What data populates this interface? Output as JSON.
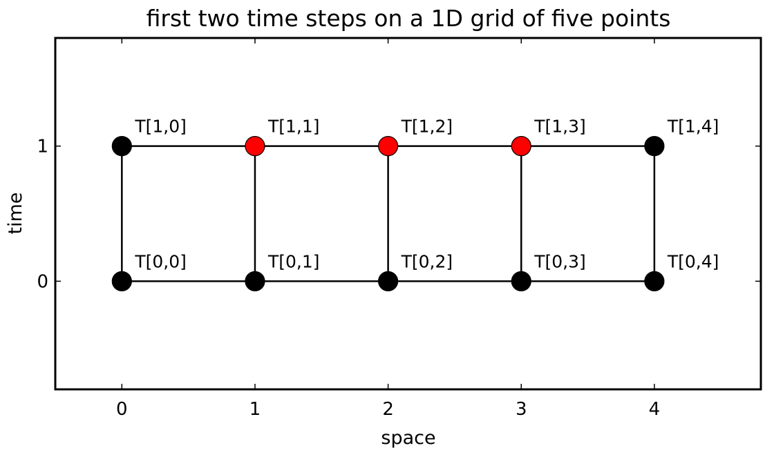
{
  "chart_data": {
    "type": "scatter",
    "title": "first two time steps on a 1D grid of five points",
    "xlabel": "space",
    "ylabel": "time",
    "xlim": [
      -0.5,
      4.8
    ],
    "ylim": [
      -0.8,
      1.8
    ],
    "xticks": [
      0,
      1,
      2,
      3,
      4
    ],
    "yticks": [
      0,
      1
    ],
    "grid": false,
    "points": [
      {
        "x": 0,
        "y": 0,
        "label": "T[0,0]",
        "color": "#000000"
      },
      {
        "x": 1,
        "y": 0,
        "label": "T[0,1]",
        "color": "#000000"
      },
      {
        "x": 2,
        "y": 0,
        "label": "T[0,2]",
        "color": "#000000"
      },
      {
        "x": 3,
        "y": 0,
        "label": "T[0,3]",
        "color": "#000000"
      },
      {
        "x": 4,
        "y": 0,
        "label": "T[0,4]",
        "color": "#000000"
      },
      {
        "x": 0,
        "y": 1,
        "label": "T[1,0]",
        "color": "#000000"
      },
      {
        "x": 1,
        "y": 1,
        "label": "T[1,1]",
        "color": "#ff0000"
      },
      {
        "x": 2,
        "y": 1,
        "label": "T[1,2]",
        "color": "#ff0000"
      },
      {
        "x": 3,
        "y": 1,
        "label": "T[1,3]",
        "color": "#ff0000"
      },
      {
        "x": 4,
        "y": 1,
        "label": "T[1,4]",
        "color": "#000000"
      }
    ],
    "lines": [
      {
        "from": [
          0,
          0
        ],
        "to": [
          4,
          0
        ]
      },
      {
        "from": [
          0,
          1
        ],
        "to": [
          4,
          1
        ]
      },
      {
        "from": [
          0,
          0
        ],
        "to": [
          0,
          1
        ]
      },
      {
        "from": [
          1,
          0
        ],
        "to": [
          1,
          1
        ]
      },
      {
        "from": [
          2,
          0
        ],
        "to": [
          2,
          1
        ]
      },
      {
        "from": [
          3,
          0
        ],
        "to": [
          3,
          1
        ]
      },
      {
        "from": [
          4,
          0
        ],
        "to": [
          4,
          1
        ]
      }
    ]
  }
}
